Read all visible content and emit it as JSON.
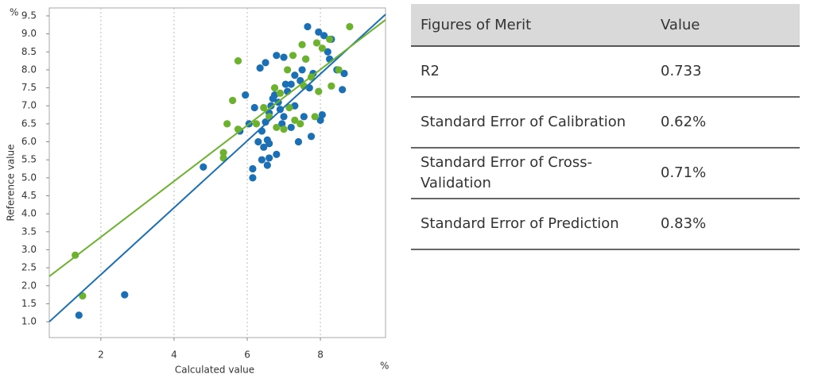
{
  "chart_data": {
    "type": "scatter",
    "x_label": "Calculated value",
    "y_label": "Reference value",
    "x_unit": "%",
    "y_unit": "%",
    "xlim": [
      0.59,
      9.78
    ],
    "ylim": [
      0.56,
      9.72
    ],
    "xticks": [
      2,
      4,
      6,
      8
    ],
    "yticks": [
      {
        "value": 1,
        "label": "1.0"
      },
      1.5,
      {
        "value": 2,
        "label": "2.0"
      },
      2.5,
      {
        "value": 3,
        "label": "3.0"
      },
      3.5,
      {
        "value": 4,
        "label": "4.0"
      },
      4.5,
      {
        "value": 5,
        "label": "5.0"
      },
      5.5,
      {
        "value": 6,
        "label": "6.0"
      },
      6.5,
      {
        "value": 7,
        "label": "7.0"
      },
      7.5,
      {
        "value": 8,
        "label": "8.0"
      },
      8.5,
      {
        "value": 9,
        "label": "9.0"
      },
      9.5
    ],
    "grid": "x",
    "series": [
      {
        "color": "#1a6fb5",
        "x": [
          1.4,
          2.65,
          4.8,
          6.15,
          6.15,
          6.4,
          6.55,
          6.6,
          6.8,
          6.3,
          6.45,
          6.55,
          6.6,
          6.4,
          6.5,
          6.6,
          6.65,
          6.7,
          6.75,
          6.85,
          6.9,
          7.0,
          6.95,
          7.1,
          7.2,
          7.3,
          7.45,
          7.5,
          7.6,
          7.7,
          7.8,
          7.65,
          7.95,
          8.1,
          8.3,
          8.2,
          8.45,
          8.65,
          8.6,
          8.0,
          8.05,
          7.55,
          7.4,
          7.75,
          6.2,
          5.95,
          5.8,
          6.05,
          6.35,
          6.5,
          6.8,
          7.0,
          7.3,
          7.2,
          7.05,
          8.25
        ],
        "values": [
          1.18,
          1.75,
          5.3,
          5.0,
          5.25,
          5.5,
          5.35,
          5.55,
          5.65,
          6.0,
          5.85,
          6.05,
          5.95,
          6.3,
          6.55,
          6.8,
          7.0,
          7.2,
          7.3,
          7.1,
          6.9,
          6.7,
          6.5,
          7.4,
          7.6,
          7.85,
          7.7,
          8.0,
          8.3,
          7.5,
          7.9,
          9.2,
          9.05,
          8.95,
          8.85,
          8.5,
          8.0,
          7.9,
          7.45,
          6.6,
          6.75,
          6.7,
          6.0,
          6.15,
          6.95,
          7.3,
          6.3,
          6.5,
          8.05,
          8.2,
          8.4,
          8.35,
          7.0,
          6.4,
          7.6,
          8.3
        ],
        "fit": {
          "x": [
            0.59,
            9.78
          ],
          "values": [
            1.0,
            9.54
          ]
        }
      },
      {
        "color": "#6cb22e",
        "x": [
          1.3,
          1.5,
          5.35,
          5.35,
          5.45,
          5.6,
          5.75,
          5.75,
          6.25,
          6.45,
          6.6,
          6.75,
          6.9,
          6.8,
          7.0,
          7.15,
          7.25,
          7.3,
          7.45,
          7.55,
          7.5,
          7.6,
          7.75,
          7.85,
          7.95,
          8.05,
          8.25,
          8.3,
          8.5,
          8.8,
          7.9,
          7.1
        ],
        "values": [
          2.85,
          1.72,
          5.55,
          5.7,
          6.5,
          7.15,
          8.25,
          6.35,
          6.5,
          6.95,
          6.7,
          7.5,
          7.35,
          6.4,
          6.35,
          6.95,
          8.4,
          6.6,
          6.5,
          7.55,
          8.7,
          8.3,
          7.8,
          6.7,
          7.4,
          8.6,
          8.85,
          7.55,
          8.0,
          9.2,
          8.75,
          8.0
        ],
        "fit": {
          "x": [
            0.59,
            9.78
          ],
          "values": [
            2.26,
            9.39
          ]
        }
      }
    ]
  },
  "table": {
    "header": [
      "Figures of Merit",
      "Value"
    ],
    "rows": [
      [
        "R2",
        "0.733"
      ],
      [
        "Standard Error of Calibration",
        "0.62%"
      ],
      [
        "Standard Error of Cross-Validation",
        "0.71%"
      ],
      [
        "Standard Error of Prediction",
        "0.83%"
      ]
    ]
  }
}
